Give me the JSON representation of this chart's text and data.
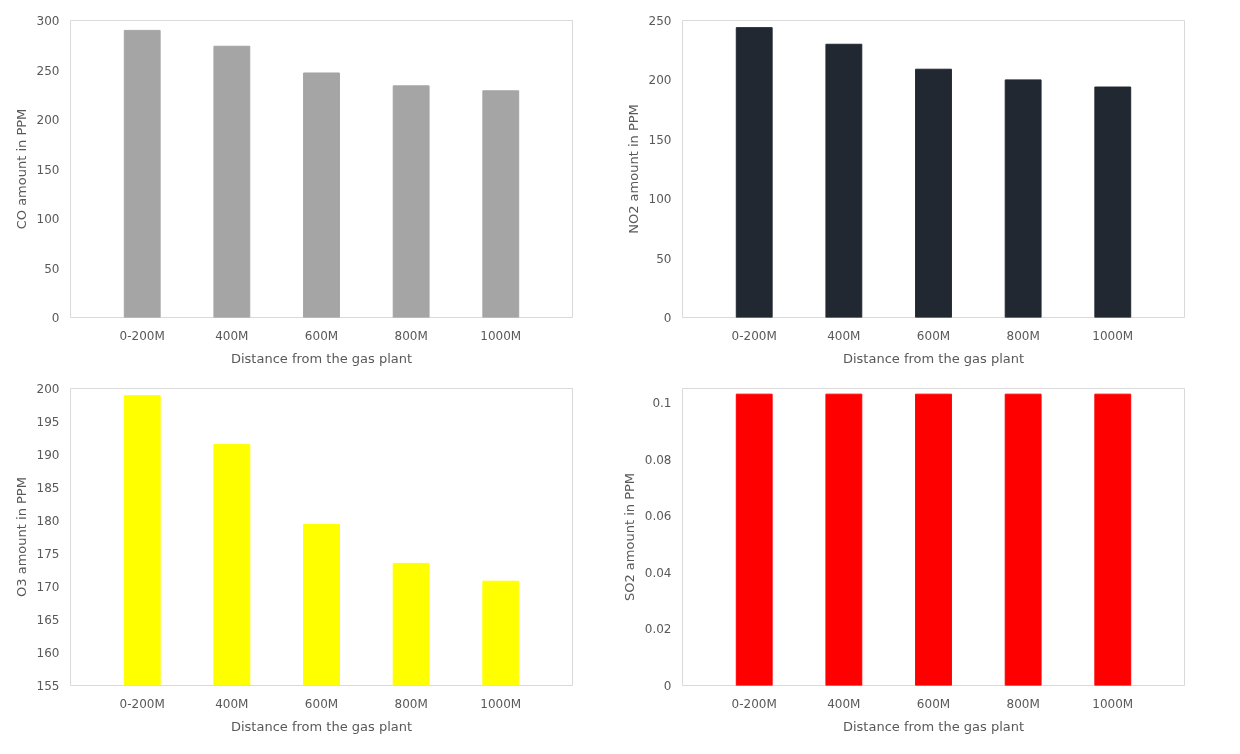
{
  "chart_data": [
    {
      "type": "bar",
      "xlabel": "Distance from the gas plant",
      "ylabel": "CO amount in PPM",
      "categories": [
        "0-200M",
        "400M",
        "600M",
        "800M",
        "1000M"
      ],
      "values": [
        290,
        274,
        247,
        234,
        229
      ],
      "color": "#a5a5a5",
      "ylim": [
        0,
        300
      ],
      "yticks": [
        0,
        50,
        100,
        150,
        200,
        250,
        300
      ],
      "grid": false
    },
    {
      "type": "bar",
      "xlabel": "Distance from the gas plant",
      "ylabel": "NO2 amount in PPM",
      "categories": [
        "0-200M",
        "400M",
        "600M",
        "800M",
        "1000M"
      ],
      "values": [
        244,
        230,
        209,
        200,
        194
      ],
      "color": "#222831",
      "ylim": [
        0,
        250
      ],
      "yticks": [
        0,
        50,
        100,
        150,
        200,
        250
      ],
      "grid": false
    },
    {
      "type": "bar",
      "xlabel": "Distance from the gas plant",
      "ylabel": "O3 amount in PPM",
      "categories": [
        "0-200M",
        "400M",
        "600M",
        "800M",
        "1000M"
      ],
      "values": [
        198.9,
        191.5,
        179.4,
        173.5,
        170.8
      ],
      "color": "#ffff00",
      "ylim": [
        155,
        200
      ],
      "yticks": [
        155,
        160,
        165,
        170,
        175,
        180,
        185,
        190,
        195,
        200
      ],
      "grid": false
    },
    {
      "type": "bar",
      "xlabel": "Distance from the gas plant",
      "ylabel": "SO2 amount in PPM",
      "categories": [
        "0-200M",
        "400M",
        "600M",
        "800M",
        "1000M"
      ],
      "values": [
        0.103,
        0.103,
        0.103,
        0.103,
        0.103
      ],
      "color": "#ff0000",
      "ylim": [
        0,
        0.105
      ],
      "yticks": [
        0,
        0.02,
        0.04,
        0.06,
        0.08,
        0.1
      ],
      "grid": false
    }
  ]
}
